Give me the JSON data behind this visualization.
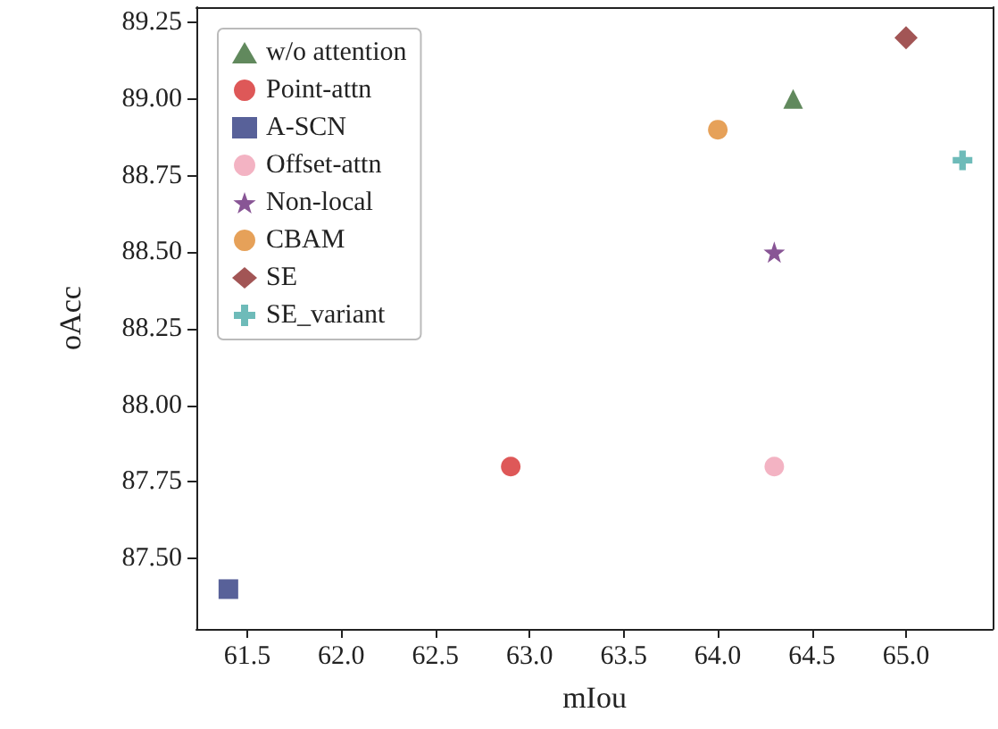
{
  "chart_data": {
    "type": "scatter",
    "xlabel": "mIou",
    "ylabel": "oAcc",
    "xlim": [
      61.23,
      65.46
    ],
    "ylim": [
      87.27,
      89.3
    ],
    "xticks": [
      {
        "value": 61.5,
        "label": "61.5"
      },
      {
        "value": 62,
        "label": "62.0"
      },
      {
        "value": 62.5,
        "label": "62.5"
      },
      {
        "value": 63,
        "label": "63.0"
      },
      {
        "value": 63.5,
        "label": "63.5"
      },
      {
        "value": 64,
        "label": "64.0"
      },
      {
        "value": 64.5,
        "label": "64.5"
      },
      {
        "value": 65,
        "label": "65.0"
      }
    ],
    "yticks": [
      {
        "value": 87.5,
        "label": "87.50"
      },
      {
        "value": 87.75,
        "label": "87.75"
      },
      {
        "value": 88,
        "label": "88.00"
      },
      {
        "value": 88.25,
        "label": "88.25"
      },
      {
        "value": 88.5,
        "label": "88.50"
      },
      {
        "value": 88.75,
        "label": "88.75"
      },
      {
        "value": 89,
        "label": "89.00"
      },
      {
        "value": 89.25,
        "label": "89.25"
      }
    ],
    "legend": "top left",
    "grid": false,
    "series": [
      {
        "name": "w/o attention",
        "color": "#3a6b35",
        "marker": "triangle",
        "x": [
          64.4
        ],
        "values": [
          89.0
        ]
      },
      {
        "name": "Point-attn",
        "color": "#d62e2e",
        "marker": "circle",
        "x": [
          62.9
        ],
        "values": [
          87.8
        ]
      },
      {
        "name": "A-SCN",
        "color": "#2e3a80",
        "marker": "square",
        "x": [
          61.4
        ],
        "values": [
          87.4
        ]
      },
      {
        "name": "Offset-attn",
        "color": "#f0a0b4",
        "x": [
          64.3
        ],
        "values": [
          87.8
        ]
      },
      {
        "name": "Non-local",
        "color": "#6a2a7a",
        "marker": "star",
        "x": [
          64.3
        ],
        "values": [
          88.5
        ]
      },
      {
        "name": "CBAM",
        "color": "#e08a30",
        "x": [
          64.0
        ],
        "values": [
          88.9
        ]
      },
      {
        "name": "SE",
        "color": "#8b2a2a",
        "marker": "diamond",
        "x": [
          65.0
        ],
        "values": [
          89.2
        ]
      },
      {
        "name": "SE_variant",
        "color": "#4aaaa8",
        "marker": "cross",
        "x": [
          65.3
        ],
        "values": [
          88.8
        ]
      }
    ]
  }
}
